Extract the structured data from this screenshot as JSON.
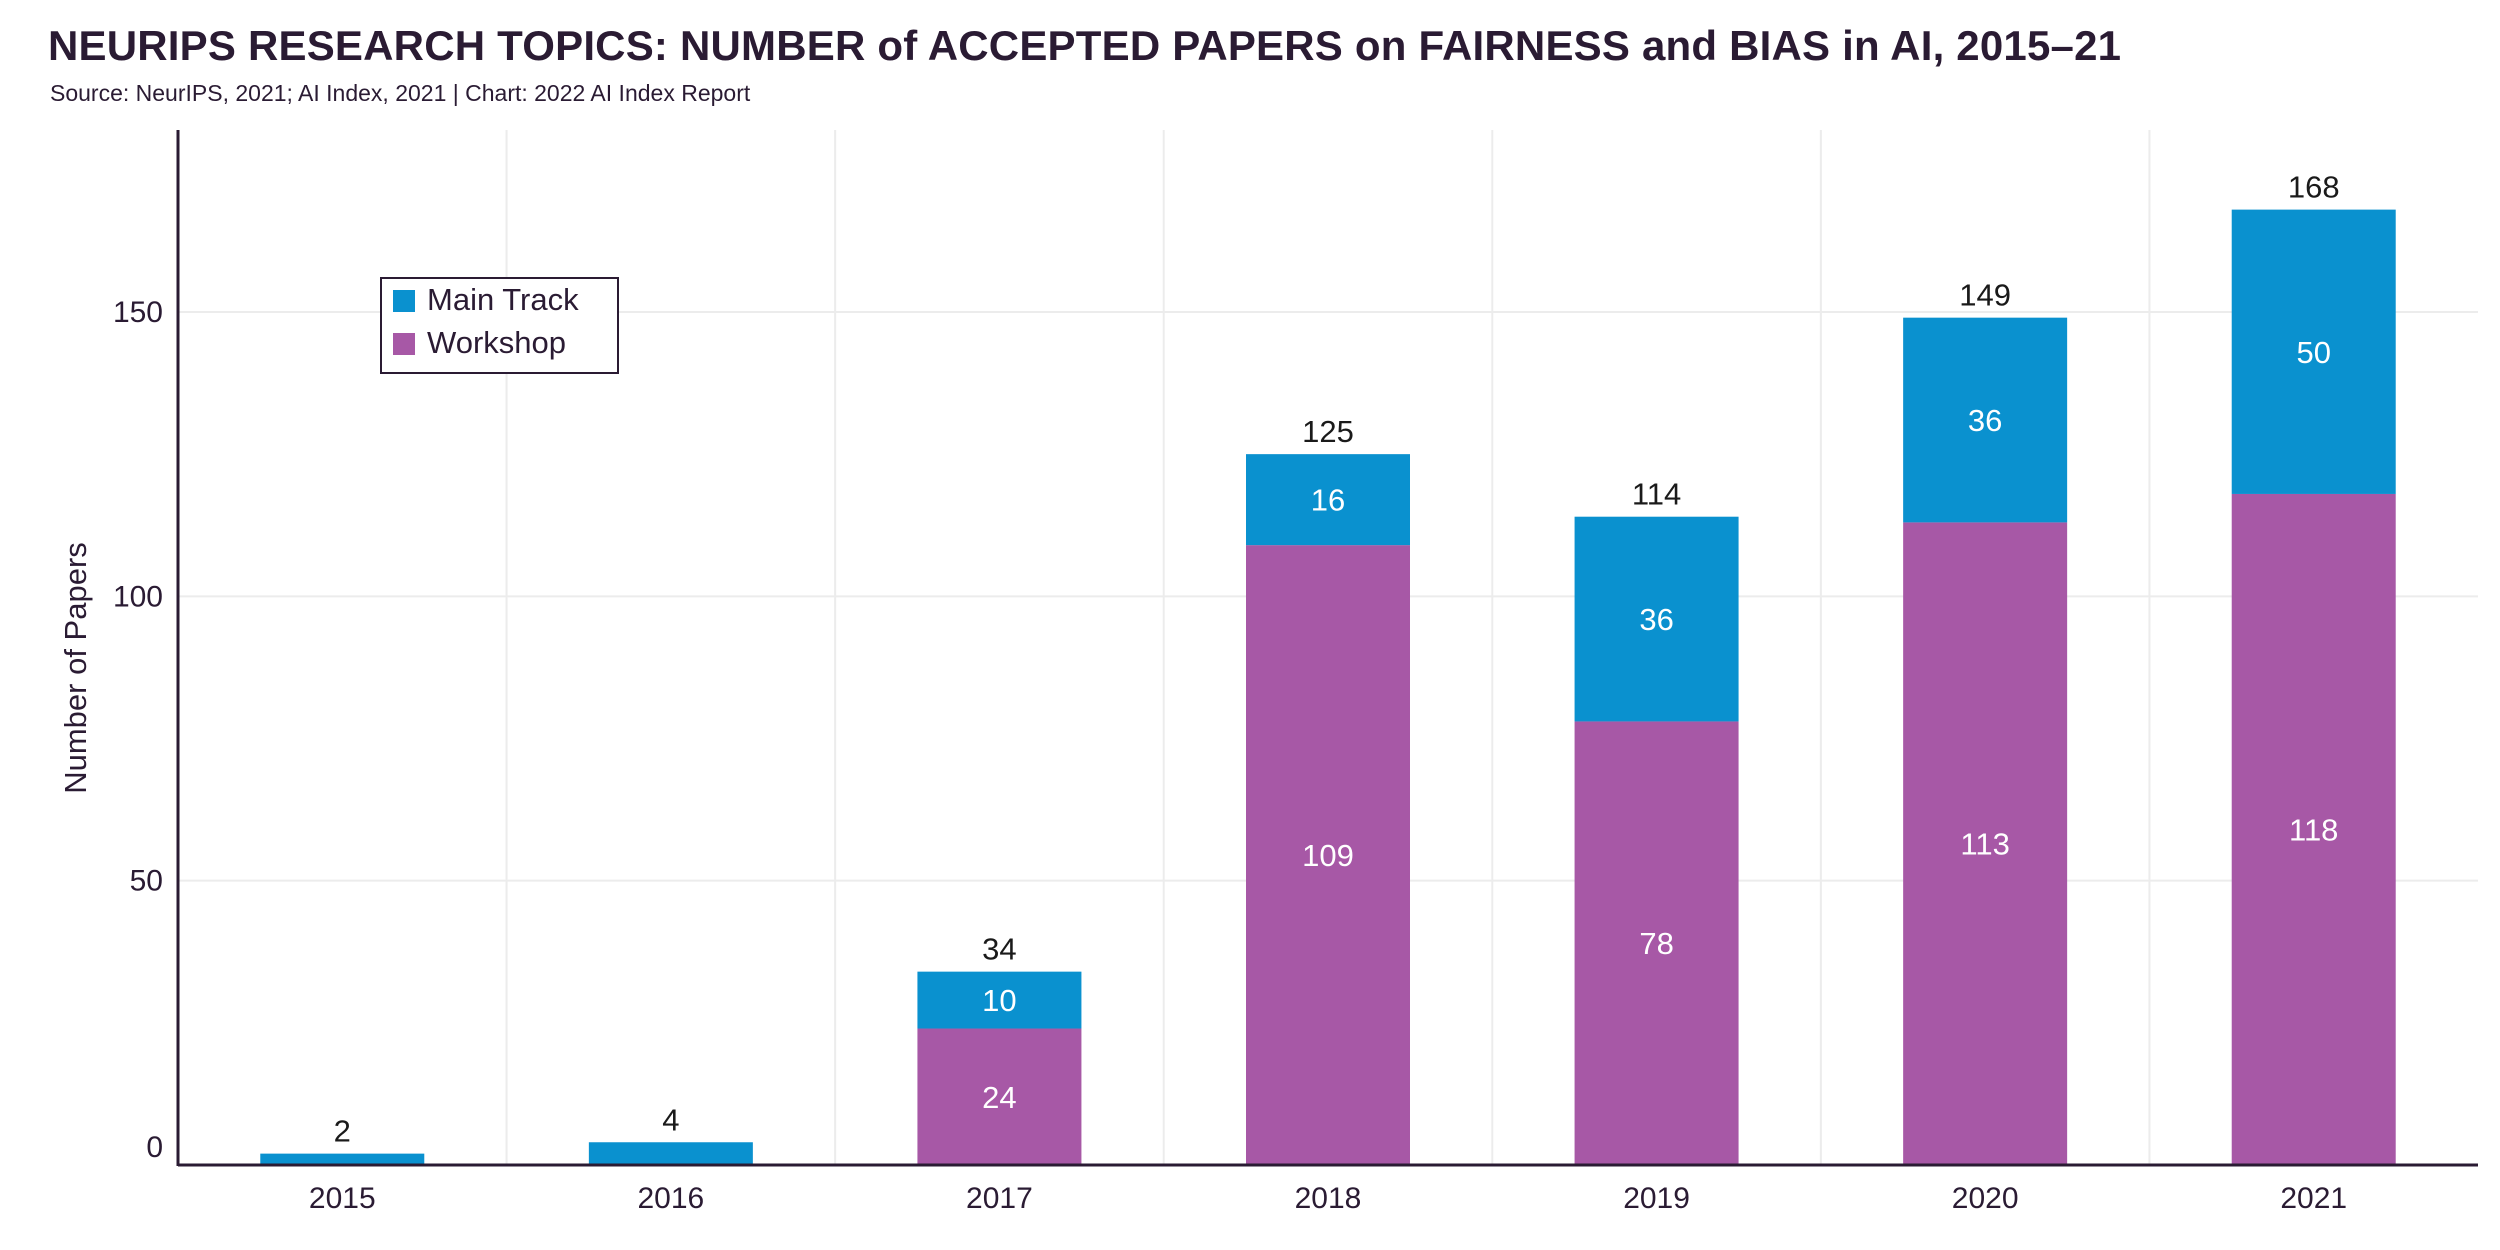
{
  "title": "NEURIPS RESEARCH TOPICS: NUMBER of ACCEPTED PAPERS on FAIRNESS and BIAS in AI, 2015–21",
  "subtitle": "Source: NeurIPS, 2021; AI Index, 2021 | Chart: 2022 AI Index Report",
  "colors": {
    "main_track": "#0a91cf",
    "workshop": "#a758a6",
    "axis": "#2a1b33",
    "grid": "#ececec"
  },
  "chart_data": {
    "type": "bar",
    "stacked": true,
    "categories": [
      "2015",
      "2016",
      "2017",
      "2018",
      "2019",
      "2020",
      "2021"
    ],
    "series": [
      {
        "name": "Workshop",
        "values": [
          0,
          0,
          24,
          109,
          78,
          113,
          118
        ]
      },
      {
        "name": "Main Track",
        "values": [
          2,
          4,
          10,
          16,
          36,
          36,
          50
        ]
      }
    ],
    "totals": [
      2,
      4,
      34,
      125,
      114,
      149,
      168
    ],
    "ylabel": "Number of Papers",
    "xlabel": "",
    "ylim": [
      0,
      182
    ],
    "yticks": [
      0,
      50,
      100,
      150
    ],
    "grid": true,
    "legend": {
      "placement": "top-left",
      "entries": [
        "Main Track",
        "Workshop"
      ]
    }
  }
}
